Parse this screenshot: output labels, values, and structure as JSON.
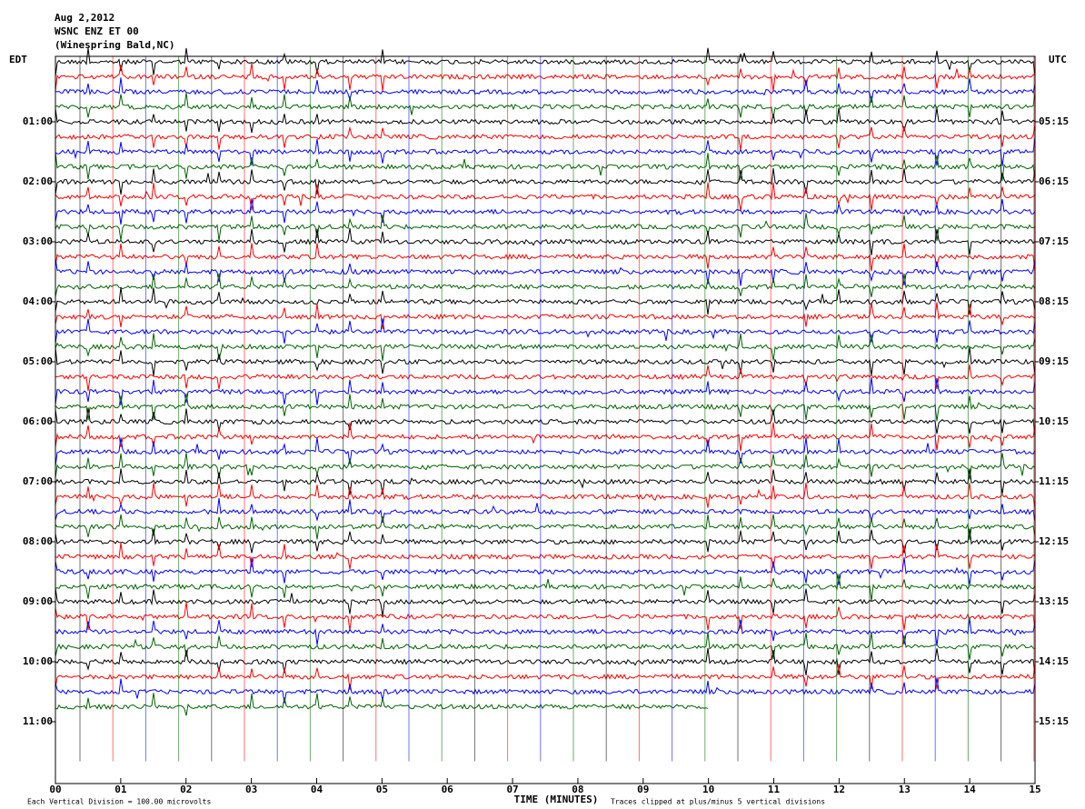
{
  "chart_data": {
    "type": "helicorder",
    "title_lines": [
      "Aug 2,2012",
      "WSNC ENZ ET 00",
      "(Winespring Bald,NC)"
    ],
    "left_axis_title": "EDT",
    "right_axis_title": "UTC",
    "x_label": "TIME (MINUTES)",
    "scale_note": "Each Vertical Division =  100.00 microvolts",
    "clip_note": "Traces clipped at plus/minus 5 vertical divisions",
    "xlim": [
      0,
      15
    ],
    "xticks": [
      {
        "value": 0,
        "label": "00"
      },
      {
        "value": 1,
        "label": "01"
      },
      {
        "value": 2,
        "label": "02"
      },
      {
        "value": 3,
        "label": "03"
      },
      {
        "value": 4,
        "label": "04"
      },
      {
        "value": 5,
        "label": "05"
      },
      {
        "value": 6,
        "label": "06"
      },
      {
        "value": 7,
        "label": "07"
      },
      {
        "value": 8,
        "label": "08"
      },
      {
        "value": 9,
        "label": "09"
      },
      {
        "value": 10,
        "label": "10"
      },
      {
        "value": 11,
        "label": "11"
      },
      {
        "value": 12,
        "label": "12"
      },
      {
        "value": 13,
        "label": "13"
      },
      {
        "value": 14,
        "label": "14"
      },
      {
        "value": 15,
        "label": "15"
      }
    ],
    "ylim": [
      0,
      12
    ],
    "yticks": [
      {
        "value": 1,
        "label": "01:00"
      },
      {
        "value": 2,
        "label": "02:00"
      },
      {
        "value": 3,
        "label": "03:00"
      },
      {
        "value": 4,
        "label": "04:00"
      },
      {
        "value": 5,
        "label": "05:00"
      },
      {
        "value": 6,
        "label": "06:00"
      },
      {
        "value": 7,
        "label": "07:00"
      },
      {
        "value": 8,
        "label": "08:00"
      },
      {
        "value": 9,
        "label": "09:00"
      },
      {
        "value": 10,
        "label": "10:00"
      },
      {
        "value": 11,
        "label": "11:00"
      }
    ],
    "y2ticks": [
      {
        "value": 1,
        "label": "05:15"
      },
      {
        "value": 2,
        "label": "06:15"
      },
      {
        "value": 3,
        "label": "07:15"
      },
      {
        "value": 4,
        "label": "08:15"
      },
      {
        "value": 5,
        "label": "09:15"
      },
      {
        "value": 6,
        "label": "10:15"
      },
      {
        "value": 7,
        "label": "11:15"
      },
      {
        "value": 8,
        "label": "12:15"
      },
      {
        "value": 9,
        "label": "13:15"
      },
      {
        "value": 10,
        "label": "14:15"
      },
      {
        "value": 11,
        "label": "15:15"
      }
    ],
    "trace_colors": [
      "#000000",
      "#ff0000",
      "#0000ff",
      "#006400"
    ]
  }
}
